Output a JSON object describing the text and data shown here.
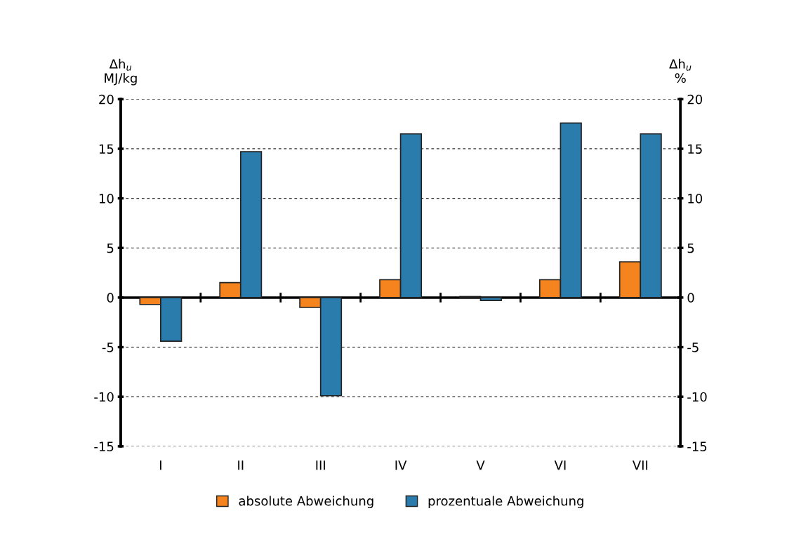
{
  "chart_data": {
    "type": "bar",
    "ylabel": "Δh$_{u}$\nMJ/kg",
    "y2label": "Δh$_{u}$\n%",
    "categories": [
      "I",
      "II",
      "III",
      "IV",
      "V",
      "VI",
      "VII"
    ],
    "series": [
      {
        "name": "absolute Abweichung",
        "color": "#f5841f",
        "values": [
          -0.7,
          1.5,
          -1.0,
          1.8,
          0.1,
          1.8,
          3.6
        ]
      },
      {
        "name": "prozentuale Abweichung",
        "color": "#2a7cac",
        "values": [
          -4.4,
          14.7,
          -9.9,
          16.5,
          -0.3,
          17.6,
          16.5
        ]
      }
    ],
    "ylim": [
      -15,
      20
    ],
    "yticks": [
      -15,
      -10,
      -5,
      0,
      5,
      10,
      15,
      20
    ],
    "y2lim": [
      -15,
      20
    ],
    "y2ticks": [
      -15,
      -10,
      -5,
      0,
      5,
      10,
      15,
      20
    ],
    "grid": "y",
    "legend": "bottom"
  }
}
